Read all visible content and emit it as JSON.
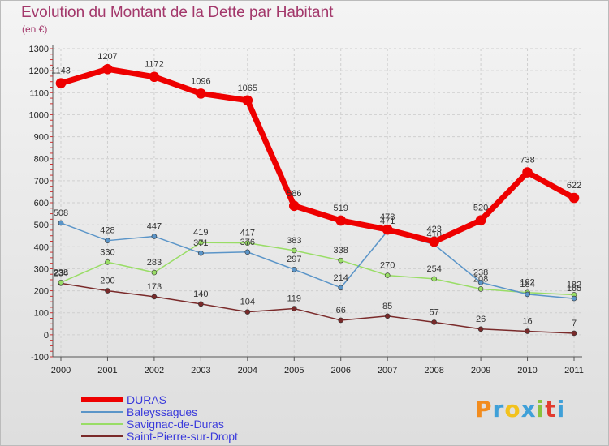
{
  "title": "Evolution du Montant de la Dette par Habitant",
  "subtitle": "(en €)",
  "logo": {
    "text": "Proxiti",
    "letter_colors": [
      "#f28c1e",
      "#3fa0d8",
      "#f2c21e",
      "#3fa0d8",
      "#8ac33e",
      "#e23b2e",
      "#3fa0d8"
    ]
  },
  "chart_data": {
    "type": "line",
    "x": [
      "2000",
      "2001",
      "2002",
      "2003",
      "2004",
      "2005",
      "2006",
      "2007",
      "2008",
      "2009",
      "2010",
      "2011"
    ],
    "ylim": [
      -100,
      1300
    ],
    "yticks": [
      "-100",
      "0",
      "100",
      "200",
      "300",
      "400",
      "500",
      "600",
      "700",
      "800",
      "900",
      "1000",
      "1100",
      "1200",
      "1300"
    ],
    "grid": true,
    "legend_position": "bottom-left",
    "series": [
      {
        "name": "Saint-Pierre-sur-Dropt",
        "color": "#7a2a2a",
        "labels": [
          "234",
          "200",
          "173",
          "140",
          "104",
          "119",
          "66",
          "85",
          "57",
          "26",
          "16",
          "7"
        ],
        "values": [
          234,
          200,
          173,
          140,
          104,
          119,
          66,
          85,
          57,
          26,
          16,
          7
        ]
      },
      {
        "name": "Savignac-de-Duras",
        "color": "#99dd66",
        "labels": [
          "238",
          "330",
          "283",
          "419",
          "417",
          "383",
          "338",
          "270",
          "254",
          "208",
          "192",
          "182"
        ],
        "values": [
          238,
          330,
          283,
          419,
          417,
          383,
          338,
          270,
          254,
          208,
          192,
          182
        ]
      },
      {
        "name": "Baleyssagues",
        "color": "#5b95c8",
        "labels": [
          "508",
          "428",
          "447",
          "371",
          "376",
          "297",
          "214",
          "471",
          "410",
          "238",
          "184",
          "165"
        ],
        "values": [
          508,
          428,
          447,
          371,
          376,
          297,
          214,
          471,
          410,
          238,
          184,
          165
        ]
      },
      {
        "name": "DURAS",
        "color": "#ee0000",
        "labels": [
          "1143",
          "1207",
          "1172",
          "1096",
          "1065",
          "586",
          "519",
          "478",
          "423",
          "520",
          "738",
          "622"
        ],
        "values": [
          1143,
          1207,
          1172,
          1096,
          1065,
          586,
          519,
          478,
          423,
          520,
          738,
          622
        ]
      }
    ],
    "legend_order": [
      "DURAS",
      "Baleyssagues",
      "Savignac-de-Duras",
      "Saint-Pierre-sur-Dropt"
    ]
  }
}
